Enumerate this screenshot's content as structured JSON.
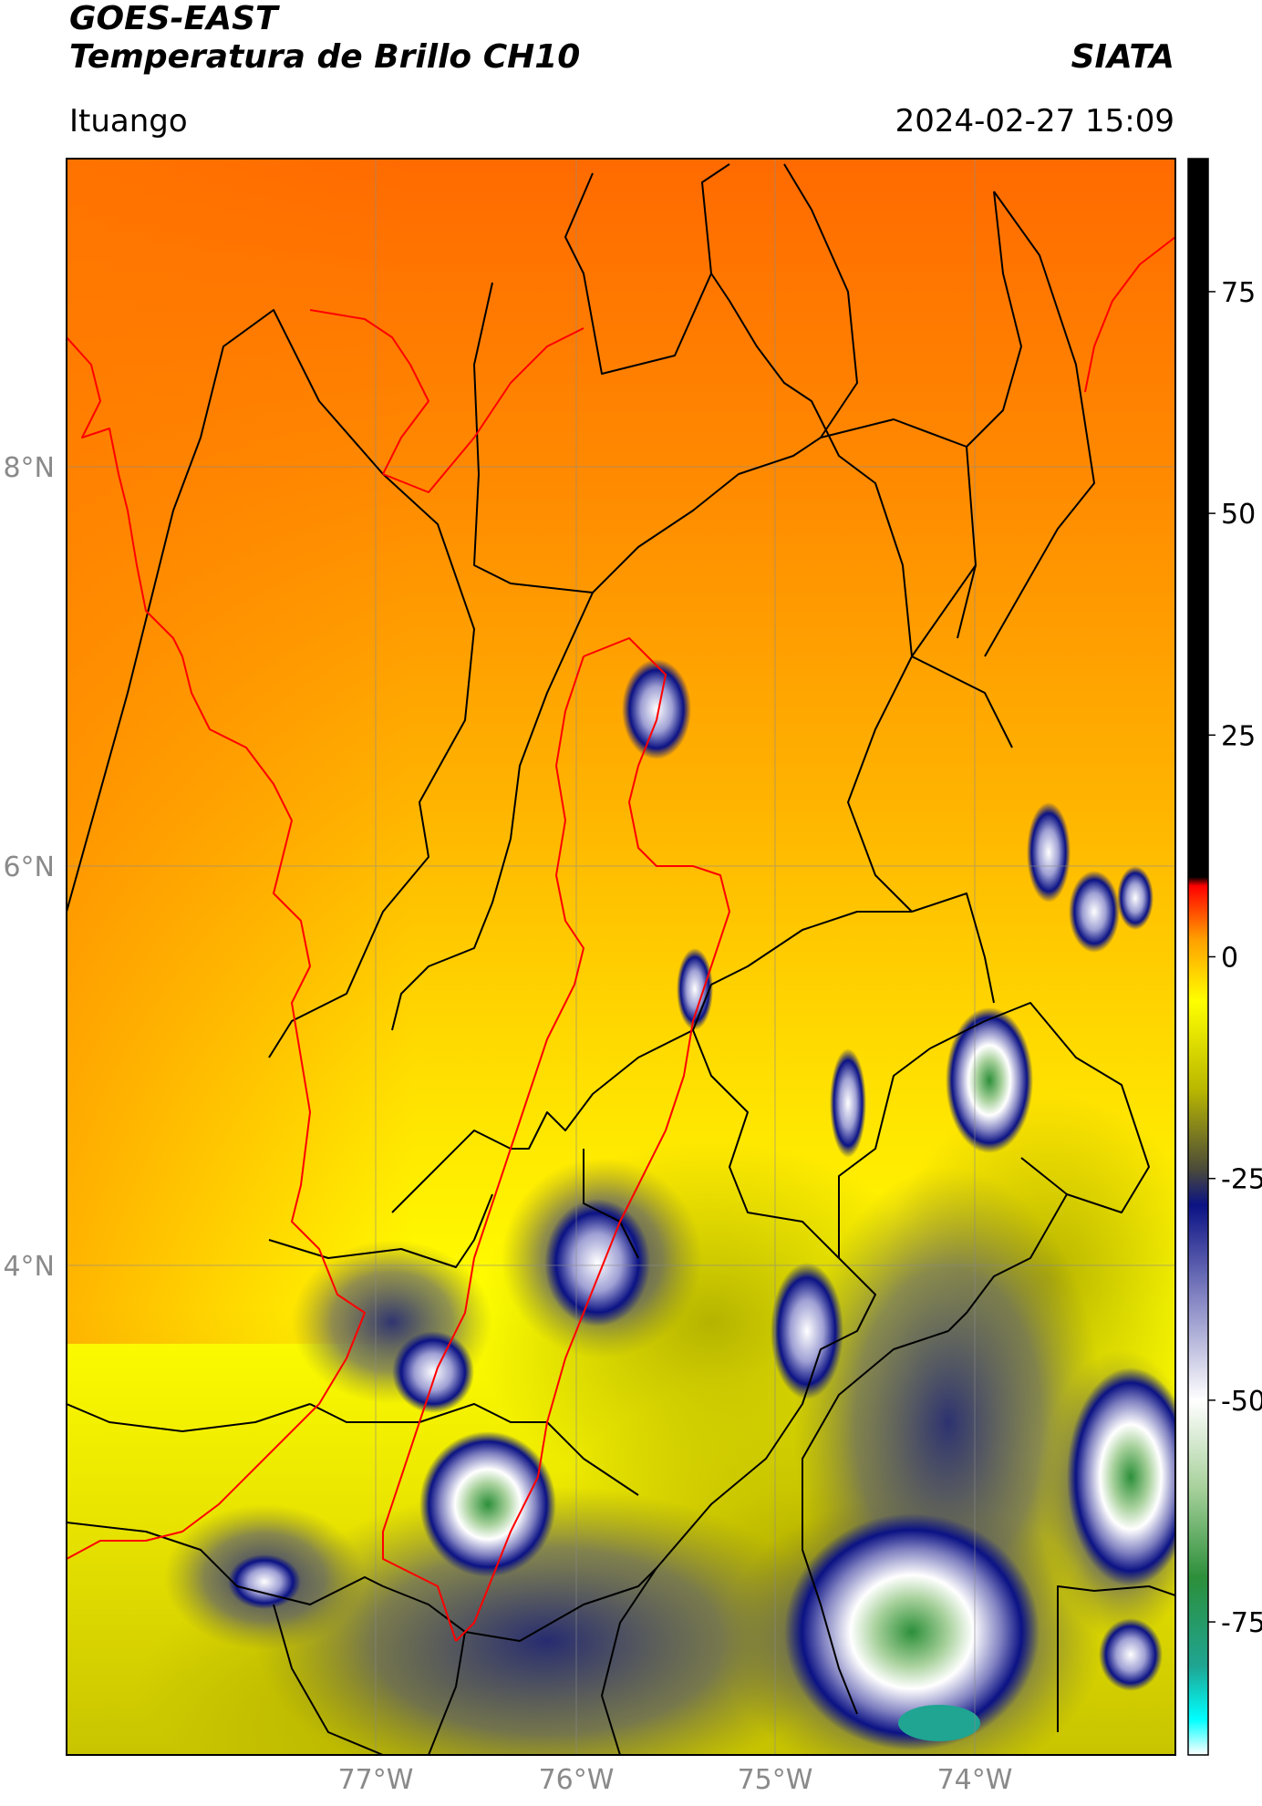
{
  "header": {
    "title_line1": "GOES-EAST",
    "title_line2": "Temperatura de Brillo CH10",
    "org": "SIATA",
    "location": "Ituango",
    "datetime": "2024-02-27 15:09"
  },
  "chart_data": {
    "type": "heatmap",
    "title": "Temperatura de Brillo CH10",
    "x_ticks": [
      "77°W",
      "76°W",
      "75°W",
      "74°W"
    ],
    "x_tick_values": [
      -77,
      -76,
      -75,
      -74
    ],
    "y_ticks": [
      "8°N",
      "6°N",
      "4°N"
    ],
    "y_tick_values": [
      8,
      6,
      4
    ],
    "xlim": [
      -78.55,
      -73.0
    ],
    "ylim": [
      2.15,
      9.55
    ],
    "grid": true,
    "colorbar": {
      "ticks": [
        "75",
        "50",
        "25",
        "0",
        "-25",
        "-50",
        "-75"
      ],
      "tick_values": [
        75,
        50,
        25,
        0,
        -25,
        -50,
        -75
      ],
      "range": [
        -90,
        90
      ],
      "colors": [
        {
          "value": -90,
          "color": "#ffffff"
        },
        {
          "value": -86,
          "color": "#00ffff"
        },
        {
          "value": -80,
          "color": "#1fa592"
        },
        {
          "value": -70,
          "color": "#2c8f3a"
        },
        {
          "value": -60,
          "color": "#a6d09a"
        },
        {
          "value": -50,
          "color": "#ffffff"
        },
        {
          "value": -38,
          "color": "#7f80c0"
        },
        {
          "value": -28,
          "color": "#0b1284"
        },
        {
          "value": -24,
          "color": "#4a4a3a"
        },
        {
          "value": -15,
          "color": "#b9b700"
        },
        {
          "value": -5,
          "color": "#ffff00"
        },
        {
          "value": 2,
          "color": "#ff9f00"
        },
        {
          "value": 8,
          "color": "#ff0000"
        },
        {
          "value": 9,
          "color": "#000000"
        },
        {
          "value": 90,
          "color": "#000000"
        }
      ]
    },
    "features": {
      "border_color": "#000000",
      "region_outline_color": "#ff0000",
      "coastline_color": "#ff0000"
    }
  }
}
